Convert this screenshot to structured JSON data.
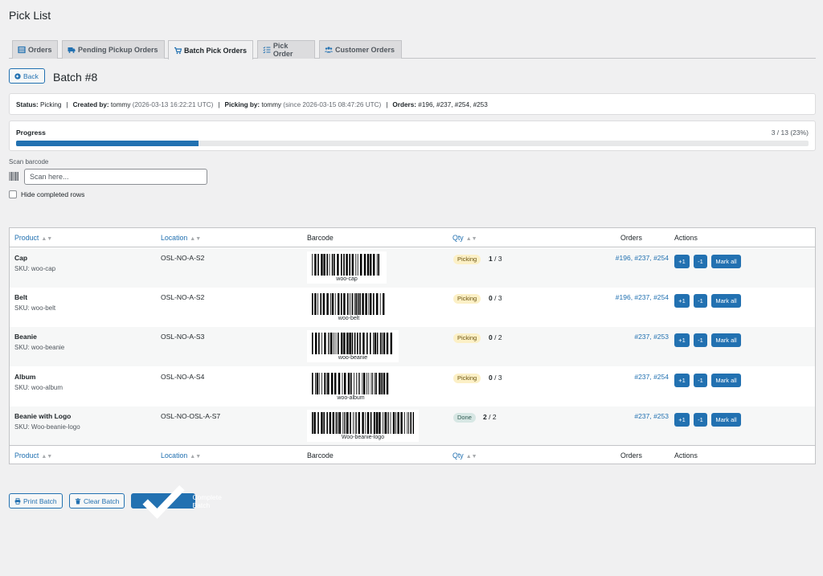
{
  "page_title": "Pick List",
  "tabs": [
    {
      "label": "Orders",
      "icon": "list-icon"
    },
    {
      "label": "Pending Pickup Orders",
      "icon": "truck-icon"
    },
    {
      "label": "Batch Pick Orders",
      "icon": "cart-icon"
    },
    {
      "label": "Pick Order",
      "icon": "checklist-icon"
    },
    {
      "label": "Customer Orders",
      "icon": "users-icon"
    }
  ],
  "active_tab": "Batch Pick Orders",
  "back_label": "Back",
  "batch_title": "Batch #8",
  "status_bar": {
    "status_label": "Status:",
    "status_value": "Picking",
    "created_label": "Created by:",
    "created_user": "tommy",
    "created_time": "(2026-03-13 16:22:21 UTC)",
    "picking_label": "Picking by:",
    "picking_user": "tommy",
    "picking_time": "(since 2026-03-15 08:47:26 UTC)",
    "orders_label": "Orders:",
    "orders_value": "#196, #237, #254, #253"
  },
  "progress": {
    "label": "Progress",
    "text": "3 / 13 (23%)",
    "fraction": 0.23
  },
  "scan": {
    "label": "Scan barcode",
    "placeholder": "Scan here..."
  },
  "hide_completed_label": "Hide completed rows",
  "table": {
    "headers": {
      "product": "Product",
      "location": "Location",
      "barcode": "Barcode",
      "qty": "Qty",
      "orders": "Orders",
      "actions": "Actions"
    },
    "rows": [
      {
        "name": "Cap",
        "sku": "SKU: woo-cap",
        "location": "OSL-NO-A-S2",
        "barcode": "woo-cap",
        "status": "Picking",
        "picked": "1",
        "total": "/ 3",
        "orders": [
          "#196",
          "#237",
          "#254"
        ]
      },
      {
        "name": "Belt",
        "sku": "SKU: woo-belt",
        "location": "OSL-NO-A-S2",
        "barcode": "woo-belt",
        "status": "Picking",
        "picked": "0",
        "total": "/ 3",
        "orders": [
          "#196",
          "#237",
          "#254"
        ]
      },
      {
        "name": "Beanie",
        "sku": "SKU: woo-beanie",
        "location": "OSL-NO-A-S3",
        "barcode": "woo-beanie",
        "status": "Picking",
        "picked": "0",
        "total": "/ 2",
        "orders": [
          "#237",
          "#253"
        ]
      },
      {
        "name": "Album",
        "sku": "SKU: woo-album",
        "location": "OSL-NO-A-S4",
        "barcode": "woo-album",
        "status": "Picking",
        "picked": "0",
        "total": "/ 3",
        "orders": [
          "#237",
          "#254"
        ]
      },
      {
        "name": "Beanie with Logo",
        "sku": "SKU: Woo-beanie-logo",
        "location": "OSL-NO-OSL-A-S7",
        "barcode": "Woo-beanie-logo",
        "status": "Done",
        "picked": "2",
        "total": "/ 2",
        "orders": [
          "#237",
          "#253"
        ]
      }
    ],
    "actions": {
      "plus": "+1",
      "minus": "-1",
      "mark_all": "Mark all"
    }
  },
  "bottom_buttons": {
    "print": "Print Batch",
    "clear": "Clear Batch",
    "complete": "Complete Batch"
  },
  "colors": {
    "accent": "#2271b1",
    "picking_bg": "#fcf0c6",
    "done_bg": "#d7e7e4"
  }
}
